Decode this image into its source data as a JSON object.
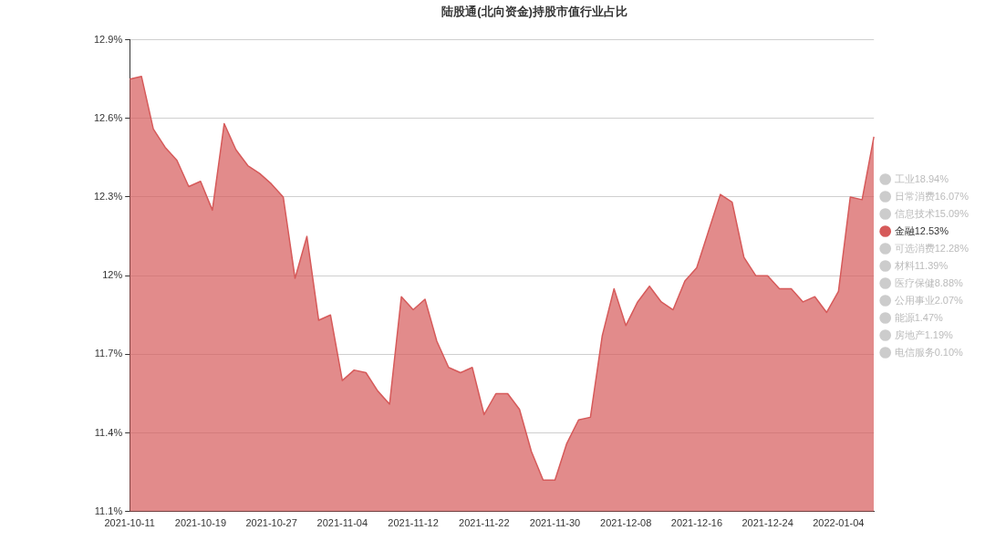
{
  "chart_data": {
    "type": "area",
    "title": "陆股通(北向资金)持股市值行业占比",
    "categories": [
      "2021-10-11",
      null,
      null,
      null,
      null,
      null,
      "2021-10-19",
      null,
      null,
      null,
      null,
      null,
      "2021-10-27",
      null,
      null,
      null,
      null,
      null,
      "2021-11-04",
      null,
      null,
      null,
      null,
      null,
      "2021-11-12",
      null,
      null,
      null,
      null,
      null,
      "2021-11-22",
      null,
      null,
      null,
      null,
      null,
      "2021-11-30",
      null,
      null,
      null,
      null,
      null,
      "2021-12-08",
      null,
      null,
      null,
      null,
      null,
      "2021-12-16",
      null,
      null,
      null,
      null,
      null,
      "2021-12-24",
      null,
      null,
      null,
      null,
      null,
      "2022-01-04",
      null,
      null,
      null
    ],
    "series": [
      {
        "name": "工业18.94%",
        "color": "#cccccc",
        "values": [
          null,
          null,
          null,
          null,
          null,
          null,
          null,
          null,
          null,
          null,
          null,
          null,
          null,
          null,
          null,
          null,
          null,
          null,
          null,
          null,
          null,
          null,
          null,
          null,
          null,
          null,
          null,
          null,
          null,
          null,
          null,
          null,
          null,
          null,
          null,
          null,
          null,
          null,
          null,
          null,
          null,
          null,
          null,
          null,
          null,
          null,
          null,
          null,
          null,
          null,
          null,
          null,
          null,
          null,
          null,
          null,
          null,
          null,
          null,
          null,
          null,
          null,
          null,
          null
        ]
      },
      {
        "name": "日常消费16.07%",
        "color": "#cccccc",
        "values": [
          null,
          null,
          null,
          null,
          null,
          null,
          null,
          null,
          null,
          null,
          null,
          null,
          null,
          null,
          null,
          null,
          null,
          null,
          null,
          null,
          null,
          null,
          null,
          null,
          null,
          null,
          null,
          null,
          null,
          null,
          null,
          null,
          null,
          null,
          null,
          null,
          null,
          null,
          null,
          null,
          null,
          null,
          null,
          null,
          null,
          null,
          null,
          null,
          null,
          null,
          null,
          null,
          null,
          null,
          null,
          null,
          null,
          null,
          null,
          null,
          null,
          null,
          null,
          null
        ]
      },
      {
        "name": "信息技术15.09%",
        "color": "#cccccc",
        "values": [
          null,
          null,
          null,
          null,
          null,
          null,
          null,
          null,
          null,
          null,
          null,
          null,
          null,
          null,
          null,
          null,
          null,
          null,
          null,
          null,
          null,
          null,
          null,
          null,
          null,
          null,
          null,
          null,
          null,
          null,
          null,
          null,
          null,
          null,
          null,
          null,
          null,
          null,
          null,
          null,
          null,
          null,
          null,
          null,
          null,
          null,
          null,
          null,
          null,
          null,
          null,
          null,
          null,
          null,
          null,
          null,
          null,
          null,
          null,
          null,
          null,
          null,
          null,
          null
        ]
      },
      {
        "name": "金融12.53%",
        "color": "#d65a5a",
        "values": [
          12.75,
          12.76,
          12.56,
          12.49,
          12.44,
          12.34,
          12.36,
          12.25,
          12.58,
          12.48,
          12.42,
          12.39,
          12.35,
          12.3,
          11.99,
          12.15,
          11.83,
          11.85,
          11.6,
          11.64,
          11.63,
          11.56,
          11.51,
          11.92,
          11.87,
          11.91,
          11.75,
          11.65,
          11.63,
          11.65,
          11.47,
          11.55,
          11.55,
          11.49,
          11.33,
          11.22,
          11.22,
          11.36,
          11.45,
          11.46,
          11.77,
          11.95,
          11.81,
          11.9,
          11.96,
          11.9,
          11.87,
          11.98,
          12.03,
          12.17,
          12.31,
          12.28,
          12.07,
          12.0,
          12.0,
          11.95,
          11.95,
          11.9,
          11.92,
          11.86,
          11.94,
          12.3,
          12.29,
          12.53
        ]
      },
      {
        "name": "可选消费12.28%",
        "color": "#cccccc",
        "values": [
          null,
          null,
          null,
          null,
          null,
          null,
          null,
          null,
          null,
          null,
          null,
          null,
          null,
          null,
          null,
          null,
          null,
          null,
          null,
          null,
          null,
          null,
          null,
          null,
          null,
          null,
          null,
          null,
          null,
          null,
          null,
          null,
          null,
          null,
          null,
          null,
          null,
          null,
          null,
          null,
          null,
          null,
          null,
          null,
          null,
          null,
          null,
          null,
          null,
          null,
          null,
          null,
          null,
          null,
          null,
          null,
          null,
          null,
          null,
          null,
          null,
          null,
          null,
          null
        ]
      },
      {
        "name": "材料11.39%",
        "color": "#cccccc",
        "values": [
          null,
          null,
          null,
          null,
          null,
          null,
          null,
          null,
          null,
          null,
          null,
          null,
          null,
          null,
          null,
          null,
          null,
          null,
          null,
          null,
          null,
          null,
          null,
          null,
          null,
          null,
          null,
          null,
          null,
          null,
          null,
          null,
          null,
          null,
          null,
          null,
          null,
          null,
          null,
          null,
          null,
          null,
          null,
          null,
          null,
          null,
          null,
          null,
          null,
          null,
          null,
          null,
          null,
          null,
          null,
          null,
          null,
          null,
          null,
          null,
          null,
          null,
          null,
          null
        ]
      },
      {
        "name": "医疗保健8.88%",
        "color": "#cccccc",
        "values": [
          null,
          null,
          null,
          null,
          null,
          null,
          null,
          null,
          null,
          null,
          null,
          null,
          null,
          null,
          null,
          null,
          null,
          null,
          null,
          null,
          null,
          null,
          null,
          null,
          null,
          null,
          null,
          null,
          null,
          null,
          null,
          null,
          null,
          null,
          null,
          null,
          null,
          null,
          null,
          null,
          null,
          null,
          null,
          null,
          null,
          null,
          null,
          null,
          null,
          null,
          null,
          null,
          null,
          null,
          null,
          null,
          null,
          null,
          null,
          null,
          null,
          null,
          null,
          null
        ]
      },
      {
        "name": "公用事业2.07%",
        "color": "#cccccc",
        "values": [
          null,
          null,
          null,
          null,
          null,
          null,
          null,
          null,
          null,
          null,
          null,
          null,
          null,
          null,
          null,
          null,
          null,
          null,
          null,
          null,
          null,
          null,
          null,
          null,
          null,
          null,
          null,
          null,
          null,
          null,
          null,
          null,
          null,
          null,
          null,
          null,
          null,
          null,
          null,
          null,
          null,
          null,
          null,
          null,
          null,
          null,
          null,
          null,
          null,
          null,
          null,
          null,
          null,
          null,
          null,
          null,
          null,
          null,
          null,
          null,
          null,
          null,
          null,
          null
        ]
      },
      {
        "name": "能源1.47%",
        "color": "#cccccc",
        "values": [
          null,
          null,
          null,
          null,
          null,
          null,
          null,
          null,
          null,
          null,
          null,
          null,
          null,
          null,
          null,
          null,
          null,
          null,
          null,
          null,
          null,
          null,
          null,
          null,
          null,
          null,
          null,
          null,
          null,
          null,
          null,
          null,
          null,
          null,
          null,
          null,
          null,
          null,
          null,
          null,
          null,
          null,
          null,
          null,
          null,
          null,
          null,
          null,
          null,
          null,
          null,
          null,
          null,
          null,
          null,
          null,
          null,
          null,
          null,
          null,
          null,
          null,
          null,
          null
        ]
      },
      {
        "name": "房地产1.19%",
        "color": "#cccccc",
        "values": [
          null,
          null,
          null,
          null,
          null,
          null,
          null,
          null,
          null,
          null,
          null,
          null,
          null,
          null,
          null,
          null,
          null,
          null,
          null,
          null,
          null,
          null,
          null,
          null,
          null,
          null,
          null,
          null,
          null,
          null,
          null,
          null,
          null,
          null,
          null,
          null,
          null,
          null,
          null,
          null,
          null,
          null,
          null,
          null,
          null,
          null,
          null,
          null,
          null,
          null,
          null,
          null,
          null,
          null,
          null,
          null,
          null,
          null,
          null,
          null,
          null,
          null,
          null,
          null
        ]
      },
      {
        "name": "电信服务0.10%",
        "color": "#cccccc",
        "values": [
          null,
          null,
          null,
          null,
          null,
          null,
          null,
          null,
          null,
          null,
          null,
          null,
          null,
          null,
          null,
          null,
          null,
          null,
          null,
          null,
          null,
          null,
          null,
          null,
          null,
          null,
          null,
          null,
          null,
          null,
          null,
          null,
          null,
          null,
          null,
          null,
          null,
          null,
          null,
          null,
          null,
          null,
          null,
          null,
          null,
          null,
          null,
          null,
          null,
          null,
          null,
          null,
          null,
          null,
          null,
          null,
          null,
          null,
          null,
          null,
          null,
          null,
          null,
          null
        ]
      }
    ],
    "ylim": [
      11.1,
      12.9
    ],
    "yticks": [
      {
        "value": 11.1,
        "label": "11.1%"
      },
      {
        "value": 11.4,
        "label": "11.4%"
      },
      {
        "value": 11.7,
        "label": "11.7%"
      },
      {
        "value": 12,
        "label": "12%"
      },
      {
        "value": 12.3,
        "label": "12.3%"
      },
      {
        "value": 12.6,
        "label": "12.6%"
      },
      {
        "value": 12.9,
        "label": "12.9%"
      }
    ],
    "grid": "y",
    "legend": "right",
    "marker": "none"
  }
}
